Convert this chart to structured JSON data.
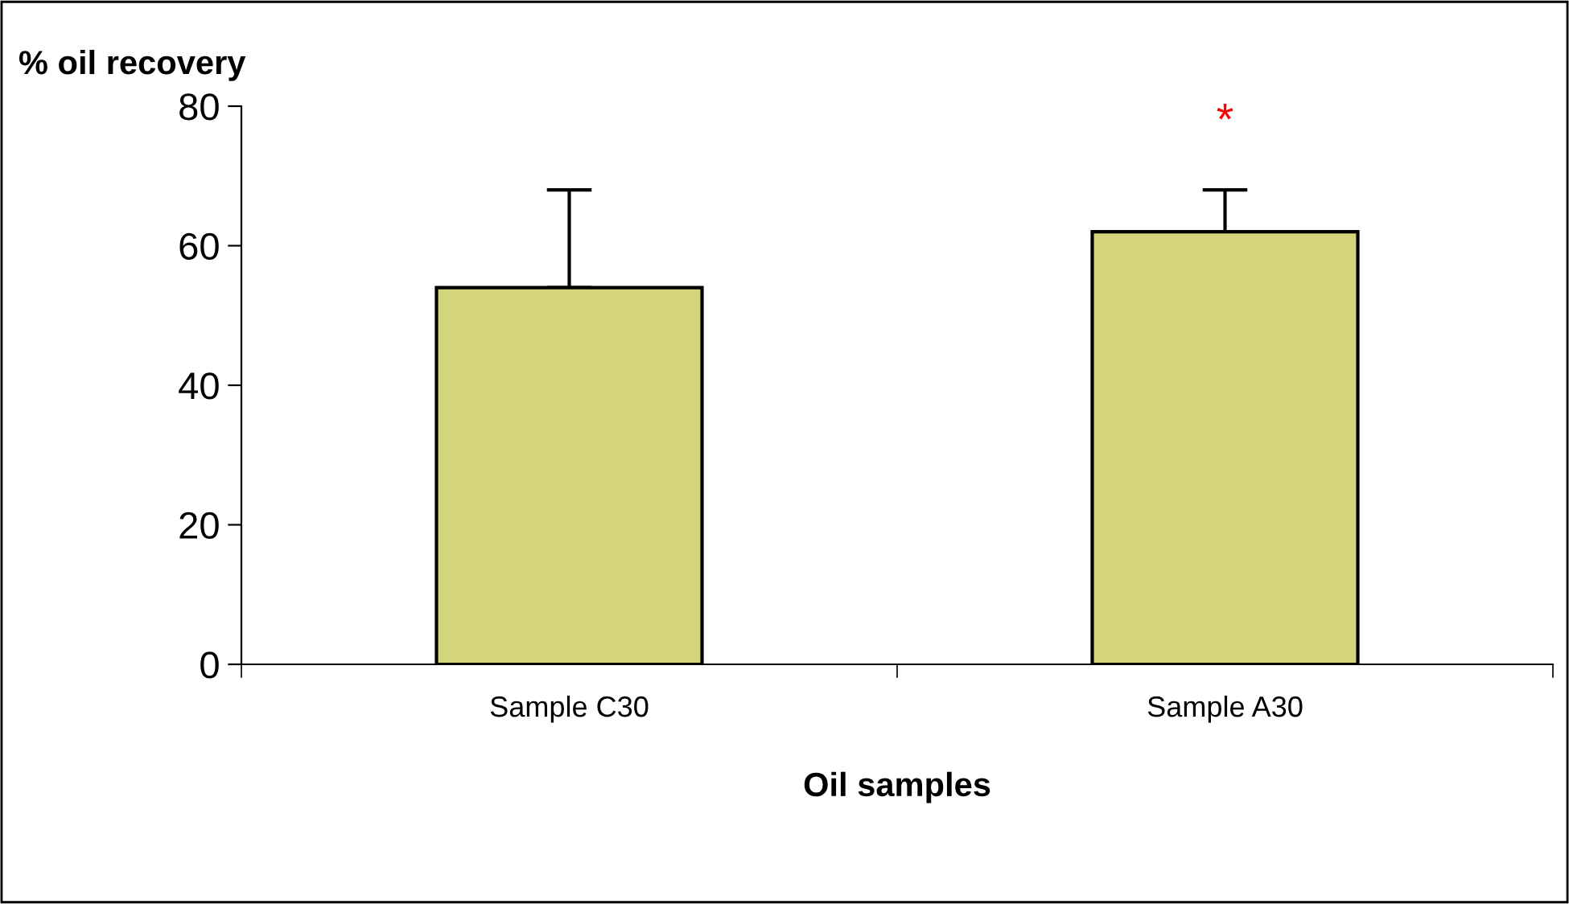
{
  "chart_data": {
    "type": "bar",
    "ylabel": "% oil recovery",
    "xlabel": "Oil samples",
    "categories": [
      "Sample C30",
      "Sample A30"
    ],
    "values": [
      54,
      62
    ],
    "errors": [
      [
        54,
        68
      ],
      [
        62,
        68
      ]
    ],
    "color": "#d4d47c",
    "ylim": [
      0,
      80
    ],
    "yticks": [
      0,
      20,
      40,
      60,
      80
    ],
    "grid": false,
    "legend": false,
    "annotations": [
      "*"
    ]
  }
}
